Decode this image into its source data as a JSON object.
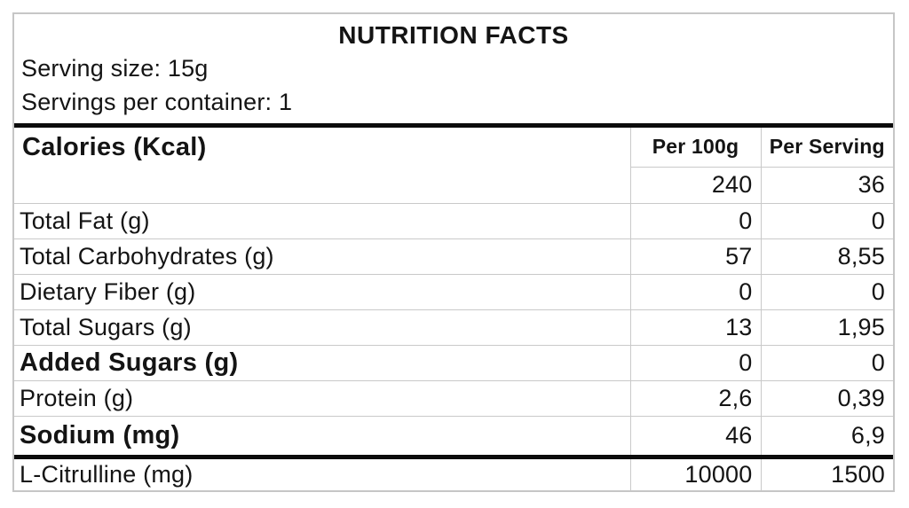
{
  "header": {
    "title": "NUTRITION FACTS",
    "serving_size": "Serving size: 15g",
    "servings_per_container": "Servings per container: 1"
  },
  "table": {
    "columns": [
      "Per 100g",
      "Per Serving"
    ],
    "calories_row": {
      "label": "Calories (Kcal)",
      "per_100g": "240",
      "per_serving": "36"
    },
    "rows": [
      {
        "label": "Total Fat (g)",
        "per_100g": "0",
        "per_serving": "0",
        "indent": 1,
        "bold": false
      },
      {
        "label": "Total Carbohydrates (g)",
        "per_100g": "57",
        "per_serving": "8,55",
        "indent": 0,
        "bold": false
      },
      {
        "label": "Dietary Fiber (g)",
        "per_100g": "0",
        "per_serving": "0",
        "indent": 2,
        "bold": false
      },
      {
        "label": "Total Sugars (g)",
        "per_100g": "13",
        "per_serving": "1,95",
        "indent": 2,
        "bold": false
      },
      {
        "label": "Added Sugars (g)",
        "per_100g": "0",
        "per_serving": "0",
        "indent": 3,
        "bold": true
      },
      {
        "label": "Protein (g)",
        "per_100g": "2,6",
        "per_serving": "0,39",
        "indent": 0,
        "bold": false
      },
      {
        "label": "Sodium (mg)",
        "per_100g": "46",
        "per_serving": "6,9",
        "indent": 0,
        "bold": true,
        "tall": true
      },
      {
        "label": "L-Citrulline (mg)",
        "per_100g": "10000",
        "per_serving": "1500",
        "indent": 0,
        "bold": false,
        "section_break_above": true,
        "last": true
      }
    ]
  },
  "colors": {
    "text": "#141414",
    "grid_line": "#c9c9c9",
    "thick_divider": "#0c0c0c",
    "outer_border": "#c6c6c6",
    "background": "#ffffff"
  }
}
